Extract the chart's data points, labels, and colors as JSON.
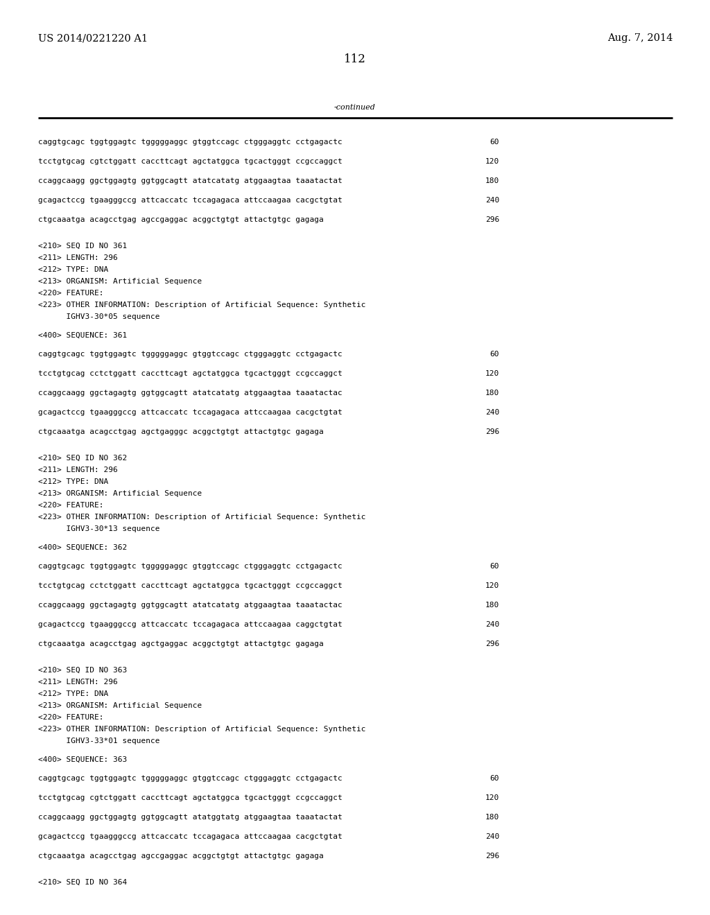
{
  "background_color": "#ffffff",
  "header_left": "US 2014/0221220 A1",
  "header_right": "Aug. 7, 2014",
  "page_number": "112",
  "continued_label": "-continued",
  "font_size_header": 10.5,
  "font_size_body": 8.0,
  "font_size_page": 12,
  "mono_font": "DejaVu Sans Mono",
  "serif_font": "DejaVu Serif",
  "content_lines": [
    {
      "text": "caggtgcagc tggtggagtc tgggggaggc gtggtccagc ctgggaggtc cctgagactc",
      "num": "60",
      "type": "seq"
    },
    {
      "text": "tcctgtgcag cgtctggatt caccttcagt agctatggca tgcactgggt ccgccaggct",
      "num": "120",
      "type": "seq"
    },
    {
      "text": "ccaggcaagg ggctggagtg ggtggcagtt atatcatatg atggaagtaa taaatactat",
      "num": "180",
      "type": "seq"
    },
    {
      "text": "gcagactccg tgaagggccg attcaccatc tccagagaca attccaagaa cacgctgtat",
      "num": "240",
      "type": "seq"
    },
    {
      "text": "ctgcaaatga acagcctgag agccgaggac acggctgtgt attactgtgc gagaga",
      "num": "296",
      "type": "seq"
    },
    {
      "text": "",
      "num": null,
      "type": "blank"
    },
    {
      "text": "<210> SEQ ID NO 361",
      "num": null,
      "type": "meta"
    },
    {
      "text": "<211> LENGTH: 296",
      "num": null,
      "type": "meta"
    },
    {
      "text": "<212> TYPE: DNA",
      "num": null,
      "type": "meta"
    },
    {
      "text": "<213> ORGANISM: Artificial Sequence",
      "num": null,
      "type": "meta"
    },
    {
      "text": "<220> FEATURE:",
      "num": null,
      "type": "meta"
    },
    {
      "text": "<223> OTHER INFORMATION: Description of Artificial Sequence: Synthetic",
      "num": null,
      "type": "meta"
    },
    {
      "text": "      IGHV3-30*05 sequence",
      "num": null,
      "type": "meta"
    },
    {
      "text": "",
      "num": null,
      "type": "blank"
    },
    {
      "text": "<400> SEQUENCE: 361",
      "num": null,
      "type": "meta"
    },
    {
      "text": "",
      "num": null,
      "type": "blank"
    },
    {
      "text": "caggtgcagc tggtggagtc tgggggaggc gtggtccagc ctgggaggtc cctgagactc",
      "num": "60",
      "type": "seq"
    },
    {
      "text": "tcctgtgcag cctctggatt caccttcagt agctatggca tgcactgggt ccgccaggct",
      "num": "120",
      "type": "seq"
    },
    {
      "text": "ccaggcaagg ggctagagtg ggtggcagtt atatcatatg atggaagtaa taaatactac",
      "num": "180",
      "type": "seq"
    },
    {
      "text": "gcagactccg tgaagggccg attcaccatc tccagagaca attccaagaa cacgctgtat",
      "num": "240",
      "type": "seq"
    },
    {
      "text": "ctgcaaatga acagcctgag agctgagggc acggctgtgt attactgtgc gagaga",
      "num": "296",
      "type": "seq"
    },
    {
      "text": "",
      "num": null,
      "type": "blank"
    },
    {
      "text": "<210> SEQ ID NO 362",
      "num": null,
      "type": "meta"
    },
    {
      "text": "<211> LENGTH: 296",
      "num": null,
      "type": "meta"
    },
    {
      "text": "<212> TYPE: DNA",
      "num": null,
      "type": "meta"
    },
    {
      "text": "<213> ORGANISM: Artificial Sequence",
      "num": null,
      "type": "meta"
    },
    {
      "text": "<220> FEATURE:",
      "num": null,
      "type": "meta"
    },
    {
      "text": "<223> OTHER INFORMATION: Description of Artificial Sequence: Synthetic",
      "num": null,
      "type": "meta"
    },
    {
      "text": "      IGHV3-30*13 sequence",
      "num": null,
      "type": "meta"
    },
    {
      "text": "",
      "num": null,
      "type": "blank"
    },
    {
      "text": "<400> SEQUENCE: 362",
      "num": null,
      "type": "meta"
    },
    {
      "text": "",
      "num": null,
      "type": "blank"
    },
    {
      "text": "caggtgcagc tggtggagtc tgggggaggc gtggtccagc ctgggaggtc cctgagactc",
      "num": "60",
      "type": "seq"
    },
    {
      "text": "tcctgtgcag cctctggatt caccttcagt agctatggca tgcactgggt ccgccaggct",
      "num": "120",
      "type": "seq"
    },
    {
      "text": "ccaggcaagg ggctagagtg ggtggcagtt atatcatatg atggaagtaa taaatactac",
      "num": "180",
      "type": "seq"
    },
    {
      "text": "gcagactccg tgaagggccg attcaccatc tccagagaca attccaagaa caggctgtat",
      "num": "240",
      "type": "seq"
    },
    {
      "text": "ctgcaaatga acagcctgag agctgaggac acggctgtgt attactgtgc gagaga",
      "num": "296",
      "type": "seq"
    },
    {
      "text": "",
      "num": null,
      "type": "blank"
    },
    {
      "text": "<210> SEQ ID NO 363",
      "num": null,
      "type": "meta"
    },
    {
      "text": "<211> LENGTH: 296",
      "num": null,
      "type": "meta"
    },
    {
      "text": "<212> TYPE: DNA",
      "num": null,
      "type": "meta"
    },
    {
      "text": "<213> ORGANISM: Artificial Sequence",
      "num": null,
      "type": "meta"
    },
    {
      "text": "<220> FEATURE:",
      "num": null,
      "type": "meta"
    },
    {
      "text": "<223> OTHER INFORMATION: Description of Artificial Sequence: Synthetic",
      "num": null,
      "type": "meta"
    },
    {
      "text": "      IGHV3-33*01 sequence",
      "num": null,
      "type": "meta"
    },
    {
      "text": "",
      "num": null,
      "type": "blank"
    },
    {
      "text": "<400> SEQUENCE: 363",
      "num": null,
      "type": "meta"
    },
    {
      "text": "",
      "num": null,
      "type": "blank"
    },
    {
      "text": "caggtgcagc tggtggagtc tgggggaggc gtggtccagc ctgggaggtc cctgagactc",
      "num": "60",
      "type": "seq"
    },
    {
      "text": "tcctgtgcag cgtctggatt caccttcagt agctatggca tgcactgggt ccgccaggct",
      "num": "120",
      "type": "seq"
    },
    {
      "text": "ccaggcaagg ggctggagtg ggtggcagtt atatggtatg atggaagtaa taaatactat",
      "num": "180",
      "type": "seq"
    },
    {
      "text": "gcagactccg tgaagggccg attcaccatc tccagagaca attccaagaa cacgctgtat",
      "num": "240",
      "type": "seq"
    },
    {
      "text": "ctgcaaatga acagcctgag agccgaggac acggctgtgt attactgtgc gagaga",
      "num": "296",
      "type": "seq"
    },
    {
      "text": "",
      "num": null,
      "type": "blank"
    },
    {
      "text": "<210> SEQ ID NO 364",
      "num": null,
      "type": "meta"
    }
  ]
}
